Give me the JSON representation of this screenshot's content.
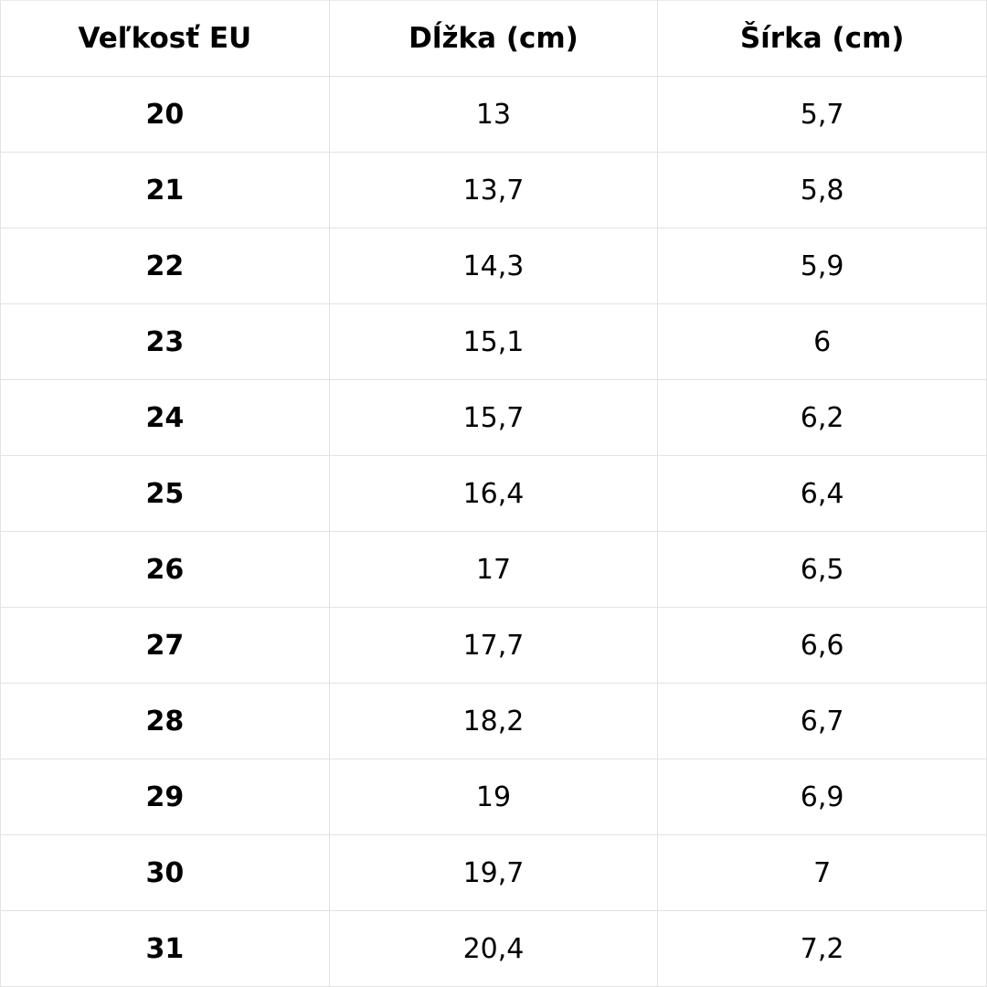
{
  "table": {
    "headers": [
      "Veľkosť EU",
      "Dĺžka (cm)",
      "Šírka (cm)"
    ],
    "rows": [
      [
        "20",
        "13",
        "5,7"
      ],
      [
        "21",
        "13,7",
        "5,8"
      ],
      [
        "22",
        "14,3",
        "5,9"
      ],
      [
        "23",
        "15,1",
        "6"
      ],
      [
        "24",
        "15,7",
        "6,2"
      ],
      [
        "25",
        "16,4",
        "6,4"
      ],
      [
        "26",
        "17",
        "6,5"
      ],
      [
        "27",
        "17,7",
        "6,6"
      ],
      [
        "28",
        "18,2",
        "6,7"
      ],
      [
        "29",
        "19",
        "6,9"
      ],
      [
        "30",
        "19,7",
        "7"
      ],
      [
        "31",
        "20,4",
        "7,2"
      ]
    ]
  }
}
